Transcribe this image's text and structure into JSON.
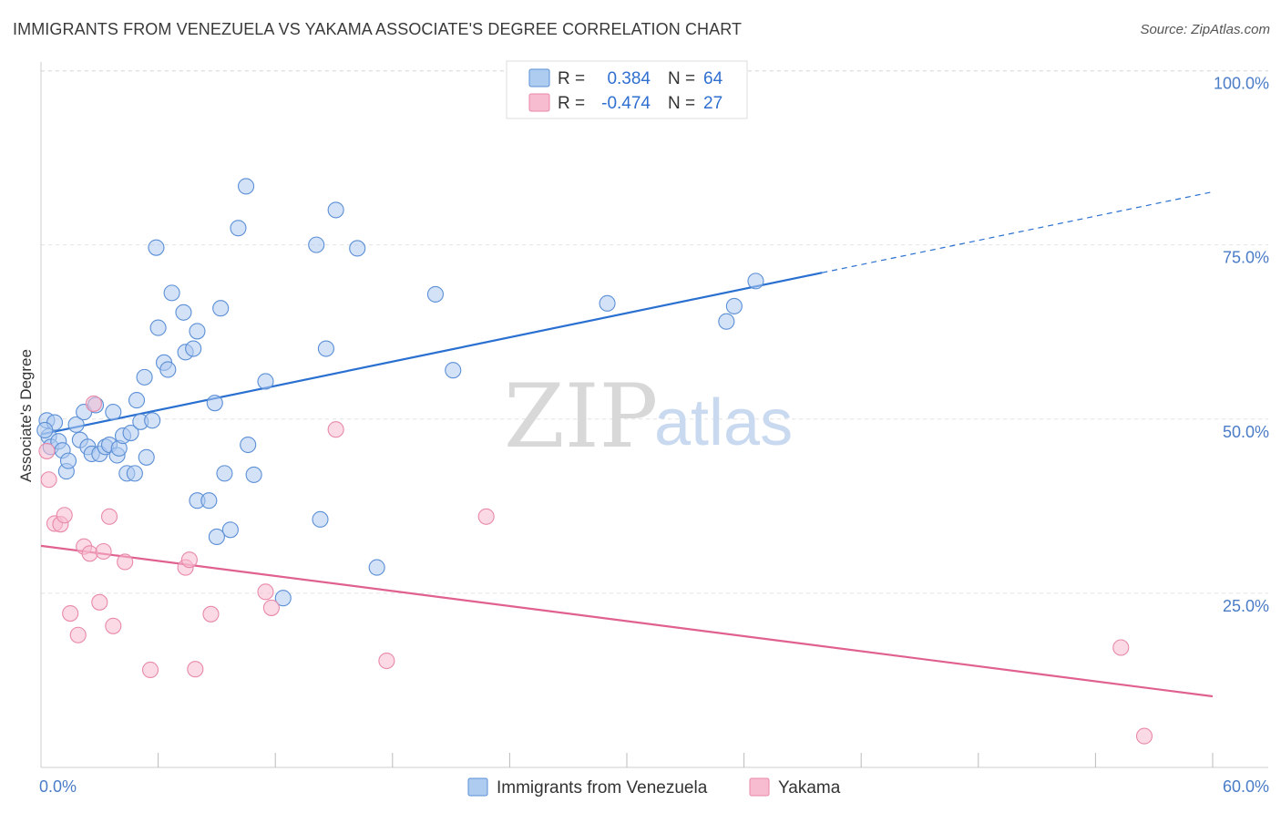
{
  "title": "IMMIGRANTS FROM VENEZUELA VS YAKAMA ASSOCIATE'S DEGREE CORRELATION CHART",
  "source": "Source: ZipAtlas.com",
  "watermark": {
    "zip": "ZIP",
    "atlas": "atlas"
  },
  "colors": {
    "blue_fill": "#aecbf0",
    "blue_stroke": "#5b8fd6",
    "blue_line": "#2a70d0",
    "pink_fill": "#f7bcd0",
    "pink_stroke": "#e889aa",
    "pink_line": "#e0608f",
    "axis_label": "#4a7cc7",
    "grid": "#e2e2e2"
  },
  "legend": {
    "rows": [
      {
        "r_label": "R =",
        "r_value": "0.384",
        "n_label": "N =",
        "n_value": "64",
        "color": "blue"
      },
      {
        "r_label": "R =",
        "r_value": "-0.474",
        "n_label": "N =",
        "n_value": "27",
        "color": "pink"
      }
    ]
  },
  "bottom_legend": [
    {
      "label": "Immigrants from Venezuela",
      "color": "blue"
    },
    {
      "label": "Yakama",
      "color": "pink"
    }
  ],
  "chart_data": {
    "type": "scatter",
    "title": "IMMIGRANTS FROM VENEZUELA VS YAKAMA ASSOCIATE'S DEGREE CORRELATION CHART",
    "xlabel": "",
    "ylabel": "Associate's Degree",
    "xlim": [
      0,
      60
    ],
    "ylim": [
      0,
      105
    ],
    "x_tick_labels": [
      {
        "value": 0,
        "label": "0.0%"
      },
      {
        "value": 60,
        "label": "60.0%"
      }
    ],
    "x_minor_ticks": [
      6,
      12,
      18,
      24,
      30,
      36,
      42,
      48,
      54,
      60
    ],
    "y_ticks": [
      {
        "value": 25,
        "label": "25.0%"
      },
      {
        "value": 50,
        "label": "50.0%"
      },
      {
        "value": 75,
        "label": "75.0%"
      },
      {
        "value": 100,
        "label": "100.0%"
      }
    ],
    "grid": true,
    "legend_position": "top-center",
    "series": [
      {
        "name": "Immigrants from Venezuela",
        "color": "blue",
        "trend": {
          "x0": 0,
          "y0": 47.8,
          "x1": 40,
          "y1": 71,
          "dashed_to_x": 60,
          "dashed_to_y": 82.6
        },
        "points": [
          [
            0.3,
            49.8
          ],
          [
            0.4,
            47.5
          ],
          [
            0.5,
            46
          ],
          [
            0.7,
            49.5
          ],
          [
            0.9,
            46.8
          ],
          [
            1.1,
            45.5
          ],
          [
            1.3,
            42.5
          ],
          [
            1.4,
            44
          ],
          [
            1.8,
            49.2
          ],
          [
            2.0,
            47
          ],
          [
            2.2,
            51
          ],
          [
            2.4,
            46
          ],
          [
            2.6,
            45
          ],
          [
            2.8,
            52
          ],
          [
            3.0,
            45
          ],
          [
            3.3,
            46
          ],
          [
            3.5,
            46.3
          ],
          [
            3.7,
            51
          ],
          [
            3.9,
            44.8
          ],
          [
            4.0,
            45.8
          ],
          [
            4.2,
            47.6
          ],
          [
            4.4,
            42.2
          ],
          [
            4.6,
            48
          ],
          [
            4.8,
            42.2
          ],
          [
            4.9,
            52.7
          ],
          [
            5.1,
            49.6
          ],
          [
            5.3,
            56
          ],
          [
            5.4,
            44.5
          ],
          [
            5.7,
            49.8
          ],
          [
            5.9,
            74.6
          ],
          [
            6.0,
            63.1
          ],
          [
            6.3,
            58.1
          ],
          [
            6.5,
            57.1
          ],
          [
            6.7,
            68.1
          ],
          [
            7.3,
            65.3
          ],
          [
            7.4,
            59.6
          ],
          [
            7.8,
            60.1
          ],
          [
            8.0,
            62.6
          ],
          [
            8.0,
            38.3
          ],
          [
            8.6,
            38.3
          ],
          [
            8.9,
            52.3
          ],
          [
            9.0,
            33.1
          ],
          [
            9.2,
            65.9
          ],
          [
            9.4,
            42.2
          ],
          [
            9.7,
            34.1
          ],
          [
            10.1,
            77.4
          ],
          [
            10.5,
            83.4
          ],
          [
            10.6,
            46.3
          ],
          [
            10.9,
            42
          ],
          [
            11.5,
            55.4
          ],
          [
            12.4,
            24.3
          ],
          [
            14.1,
            75
          ],
          [
            14.3,
            35.6
          ],
          [
            14.6,
            60.1
          ],
          [
            15.1,
            80
          ],
          [
            16.2,
            74.5
          ],
          [
            17.2,
            28.7
          ],
          [
            20.2,
            67.9
          ],
          [
            21.1,
            57
          ],
          [
            29.0,
            66.6
          ],
          [
            35.1,
            64
          ],
          [
            35.5,
            66.2
          ],
          [
            36.6,
            69.8
          ],
          [
            0.2,
            48.4
          ]
        ]
      },
      {
        "name": "Yakama",
        "color": "pink",
        "trend": {
          "x0": 0,
          "y0": 31.8,
          "x1": 60,
          "y1": 10.2
        },
        "points": [
          [
            0.3,
            45.4
          ],
          [
            0.4,
            41.3
          ],
          [
            0.7,
            35
          ],
          [
            1.0,
            34.9
          ],
          [
            1.2,
            36.2
          ],
          [
            1.5,
            22.1
          ],
          [
            1.9,
            19
          ],
          [
            2.2,
            31.7
          ],
          [
            2.5,
            30.7
          ],
          [
            2.7,
            52.2
          ],
          [
            3.0,
            23.7
          ],
          [
            3.2,
            31
          ],
          [
            3.5,
            36
          ],
          [
            3.7,
            20.3
          ],
          [
            4.3,
            29.5
          ],
          [
            5.6,
            14
          ],
          [
            7.4,
            28.7
          ],
          [
            7.6,
            29.8
          ],
          [
            7.9,
            14.1
          ],
          [
            8.7,
            22
          ],
          [
            11.5,
            25.2
          ],
          [
            11.8,
            22.9
          ],
          [
            15.1,
            48.5
          ],
          [
            17.7,
            15.3
          ],
          [
            22.8,
            36
          ],
          [
            55.3,
            17.2
          ],
          [
            56.5,
            4.5
          ]
        ]
      }
    ]
  }
}
